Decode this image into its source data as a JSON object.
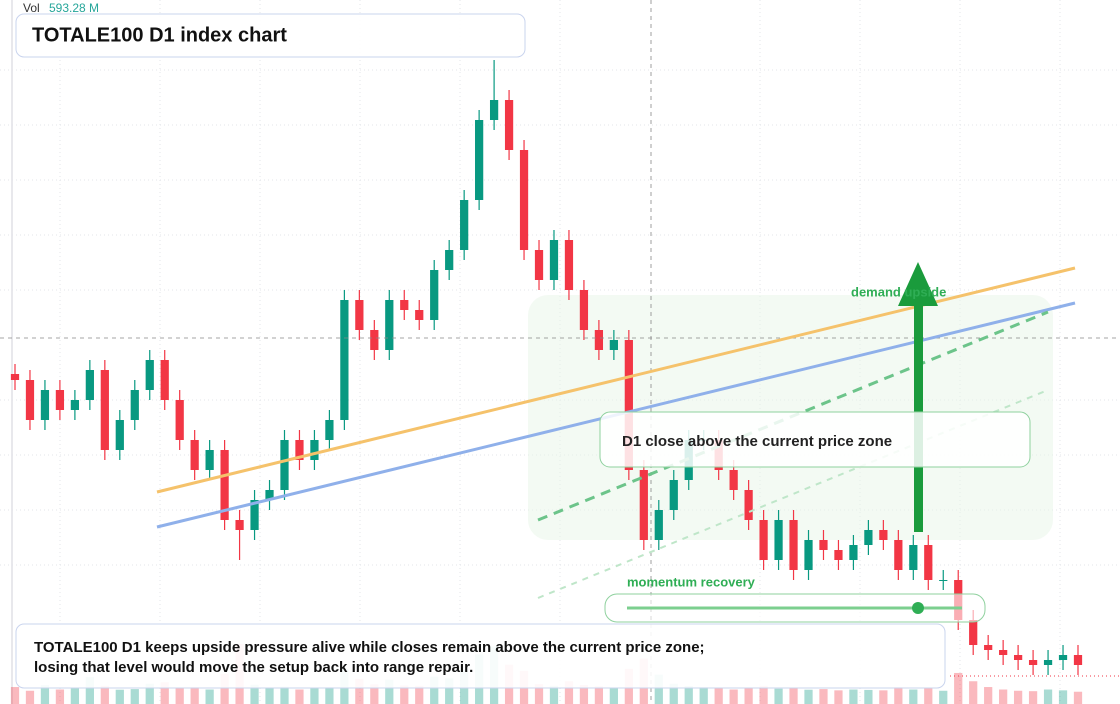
{
  "chart_data": {
    "type": "candlestick",
    "title": "TOTALE100 D1 index chart",
    "legend_label": "Vol",
    "legend_value": "593.28 M",
    "up_color": "#089981",
    "down_color": "#f23645",
    "ylim": [
      0,
      704
    ],
    "open": [
      330,
      324,
      284,
      314,
      294,
      304,
      334,
      254,
      284,
      314,
      344,
      304,
      264,
      234,
      254,
      184,
      174,
      204,
      214,
      264,
      244,
      264,
      284,
      404,
      374,
      354,
      404,
      394,
      384,
      434,
      454,
      504,
      584,
      604,
      554,
      454,
      424,
      464,
      414,
      374,
      354,
      364,
      234,
      164,
      194,
      224,
      264,
      264,
      234,
      214,
      184,
      144,
      184,
      134,
      164,
      154,
      144,
      159,
      174,
      164,
      134,
      159,
      124,
      124,
      84,
      59,
      54,
      49,
      44,
      39,
      44,
      49
    ],
    "high": [
      340,
      334,
      324,
      324,
      314,
      344,
      344,
      294,
      324,
      354,
      354,
      314,
      274,
      264,
      264,
      194,
      214,
      224,
      274,
      274,
      274,
      294,
      414,
      414,
      384,
      414,
      414,
      404,
      444,
      464,
      514,
      594,
      644,
      614,
      564,
      464,
      474,
      474,
      424,
      384,
      374,
      374,
      244,
      204,
      234,
      274,
      274,
      274,
      244,
      224,
      194,
      194,
      194,
      174,
      174,
      164,
      169,
      184,
      184,
      174,
      169,
      169,
      134,
      134,
      94,
      69,
      64,
      59,
      54,
      54,
      59,
      59
    ],
    "low": [
      314,
      274,
      274,
      284,
      284,
      294,
      244,
      244,
      274,
      304,
      294,
      254,
      224,
      224,
      174,
      144,
      164,
      194,
      204,
      234,
      234,
      254,
      274,
      364,
      344,
      344,
      384,
      374,
      374,
      424,
      444,
      494,
      574,
      544,
      444,
      414,
      414,
      404,
      364,
      344,
      344,
      224,
      154,
      154,
      184,
      214,
      254,
      224,
      204,
      174,
      134,
      134,
      124,
      124,
      144,
      134,
      134,
      149,
      154,
      124,
      124,
      114,
      114,
      74,
      49,
      44,
      39,
      34,
      29,
      29,
      34,
      29
    ],
    "close": [
      324,
      284,
      314,
      294,
      304,
      334,
      254,
      284,
      314,
      344,
      304,
      264,
      234,
      254,
      184,
      174,
      204,
      214,
      264,
      244,
      264,
      284,
      404,
      374,
      354,
      404,
      394,
      384,
      434,
      454,
      504,
      584,
      604,
      554,
      454,
      424,
      464,
      414,
      374,
      354,
      364,
      234,
      164,
      194,
      224,
      264,
      264,
      234,
      214,
      184,
      144,
      184,
      134,
      164,
      154,
      144,
      159,
      174,
      164,
      134,
      159,
      124,
      124,
      84,
      59,
      54,
      49,
      44,
      39,
      44,
      49,
      39
    ],
    "volume": [
      820,
      640,
      910,
      700,
      760,
      1300,
      880,
      690,
      720,
      980,
      1050,
      760,
      820,
      700,
      1460,
      2900,
      930,
      780,
      840,
      700,
      760,
      810,
      1700,
      1220,
      950,
      1180,
      900,
      880,
      1320,
      1240,
      1650,
      2400,
      2780,
      1900,
      1600,
      960,
      880,
      1100,
      920,
      860,
      780,
      1700,
      2200,
      1420,
      980,
      870,
      820,
      760,
      700,
      760,
      880,
      740,
      800,
      690,
      720,
      660,
      700,
      680,
      660,
      820,
      700,
      760,
      640,
      1500,
      1100,
      820,
      700,
      640,
      620,
      700,
      660,
      593.28
    ],
    "annotations": {
      "target": "demand upside",
      "zone": "D1 close above the current price zone",
      "momentum": "momentum recovery"
    },
    "caption": [
      "TOTALE100 D1 keeps upside pressure alive while closes remain above the current price zone;",
      "losing that level would move the setup back into range repair."
    ]
  }
}
